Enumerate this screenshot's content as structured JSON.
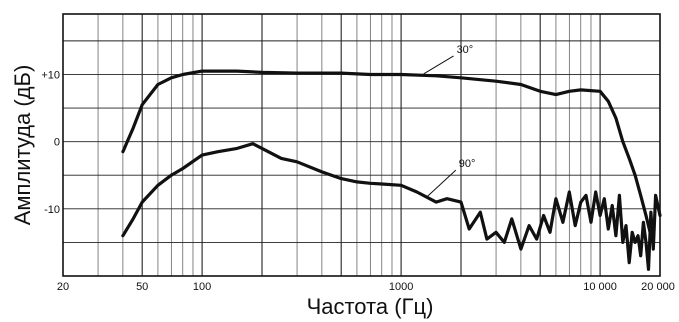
{
  "chart_data": {
    "type": "line",
    "xlabel": "Частота (Гц)",
    "ylabel": "Амплитуда (дБ)",
    "x_scale": "log",
    "xlim": [
      20,
      20000
    ],
    "ylim": [
      -20,
      19
    ],
    "grid": true,
    "x_ticks": [
      {
        "value": 20,
        "label": "20"
      },
      {
        "value": 50,
        "label": "50"
      },
      {
        "value": 100,
        "label": "100"
      },
      {
        "value": 1000,
        "label": "1000"
      },
      {
        "value": 10000,
        "label": "10 000"
      },
      {
        "value": 20000,
        "label": "20 000"
      }
    ],
    "y_ticks": [
      {
        "value": 10,
        "label": "+10"
      },
      {
        "value": 0,
        "label": "0"
      },
      {
        "value": -10,
        "label": "-10"
      }
    ],
    "series": [
      {
        "name": "30°",
        "x": [
          40,
          45,
          50,
          60,
          70,
          80,
          100,
          150,
          200,
          300,
          500,
          700,
          1000,
          1500,
          2000,
          3000,
          4000,
          5000,
          6000,
          7000,
          8000,
          10000,
          11000,
          12000,
          13000,
          14000,
          15000,
          16000,
          17000,
          18000
        ],
        "y": [
          -1.5,
          2,
          5.5,
          8.5,
          9.5,
          10,
          10.5,
          10.5,
          10.3,
          10.2,
          10.2,
          10,
          10,
          9.8,
          9.5,
          9,
          8.5,
          7.5,
          7,
          7.5,
          7.7,
          7.5,
          6,
          3.5,
          0,
          -2.5,
          -5,
          -8,
          -11,
          -14
        ]
      },
      {
        "name": "90°",
        "x": [
          40,
          45,
          50,
          60,
          70,
          80,
          100,
          120,
          150,
          180,
          200,
          250,
          300,
          400,
          500,
          600,
          700,
          800,
          1000,
          1200,
          1500,
          1700,
          2000,
          2200,
          2500,
          2700,
          3000,
          3300,
          3600,
          4000,
          4400,
          4800,
          5200,
          5600,
          6000,
          6500,
          7000,
          7500,
          8000,
          8500,
          9000,
          9500,
          10000,
          10500,
          11000,
          11500,
          12000,
          12500,
          13000,
          13500,
          14000,
          14500,
          15000,
          15500,
          16000,
          16500,
          17000,
          17500,
          18000,
          18500,
          19000,
          20000
        ],
        "y": [
          -14,
          -11.5,
          -9,
          -6.5,
          -5,
          -4,
          -2,
          -1.5,
          -1,
          -0.3,
          -1,
          -2.5,
          -3,
          -4.5,
          -5.5,
          -6,
          -6.2,
          -6.3,
          -6.5,
          -7.5,
          -9,
          -8.5,
          -9,
          -13,
          -10.5,
          -14.5,
          -13.5,
          -15,
          -11.5,
          -16,
          -12.5,
          -14.5,
          -11,
          -13.5,
          -8.5,
          -12,
          -7.5,
          -12.5,
          -9,
          -8,
          -12,
          -7.5,
          -11,
          -8.5,
          -13,
          -9.5,
          -14,
          -8,
          -15,
          -12.5,
          -18,
          -13.5,
          -15,
          -14,
          -17,
          -12,
          -15,
          -19,
          -10.5,
          -16,
          -8,
          -11
        ]
      }
    ]
  }
}
